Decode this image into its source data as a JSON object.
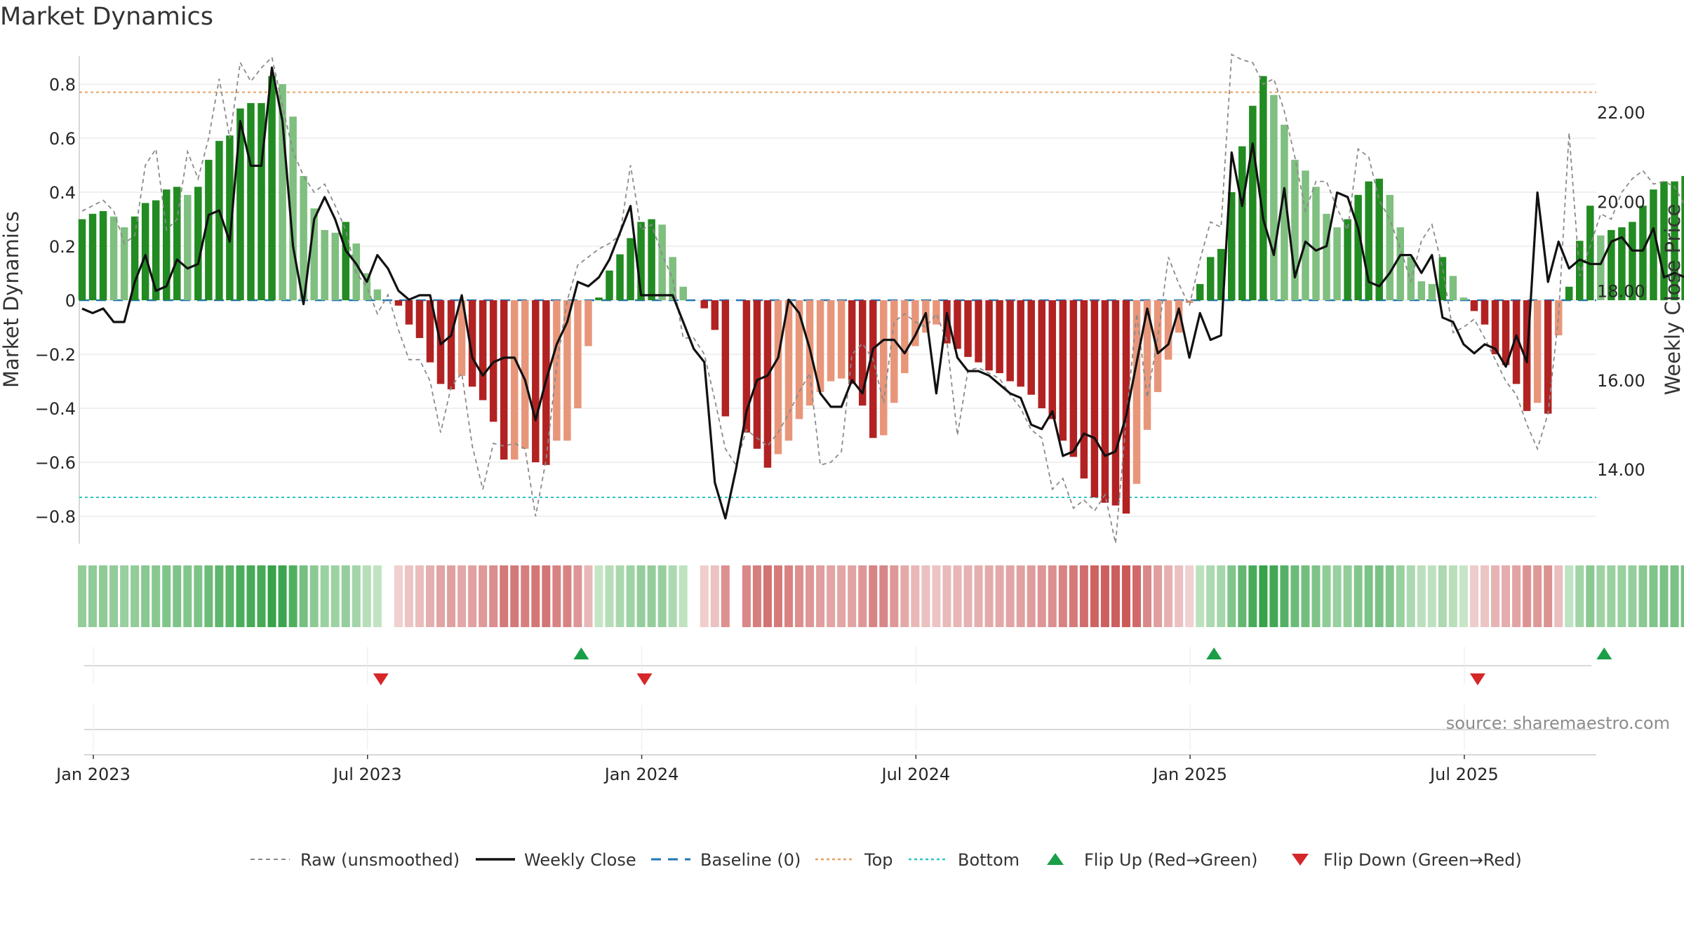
{
  "chart_data": {
    "type": "bar",
    "title": "Market Dynamics",
    "ylabel_left": "Market Dynamics",
    "ylabel_right": "Weekly Close Price",
    "ylim_left": [
      -0.9,
      0.9
    ],
    "ylim_right": [
      12.8,
      23.3
    ],
    "yticks_left": [
      "0.8",
      "0.6",
      "0.4",
      "0.2",
      "0",
      "−0.2",
      "−0.4",
      "−0.6",
      "−0.8"
    ],
    "yticks_right": [
      "22.00",
      "20.00",
      "18.00",
      "16.00",
      "14.00"
    ],
    "xticks": [
      "Jan 2023",
      "Jul 2023",
      "Jan 2024",
      "Jul 2024",
      "Jan 2025",
      "Jul 2025"
    ],
    "x_start": "2023-01-02",
    "x_end": "2025-10-20",
    "grid": true,
    "reference_lines": {
      "baseline": 0,
      "top": 0.77,
      "bottom": -0.73
    },
    "series": [
      {
        "name": "Market Dynamics (smoothed bars)",
        "values": [
          0.3,
          0.32,
          0.33,
          0.31,
          0.27,
          0.31,
          0.36,
          0.37,
          0.41,
          0.42,
          0.39,
          0.42,
          0.52,
          0.59,
          0.61,
          0.71,
          0.73,
          0.73,
          0.83,
          0.8,
          0.68,
          0.46,
          0.34,
          0.26,
          0.25,
          0.29,
          0.21,
          0.1,
          0.04,
          0,
          -0.02,
          -0.09,
          -0.14,
          -0.23,
          -0.31,
          -0.33,
          -0.28,
          -0.32,
          -0.37,
          -0.45,
          -0.59,
          -0.59,
          -0.55,
          -0.6,
          -0.61,
          -0.52,
          -0.52,
          -0.4,
          -0.17,
          0.01,
          0.11,
          0.17,
          0.23,
          0.29,
          0.3,
          0.28,
          0.16,
          0.05,
          0,
          -0.03,
          -0.11,
          -0.43,
          0,
          -0.49,
          -0.55,
          -0.62,
          -0.57,
          -0.52,
          -0.44,
          -0.39,
          -0.34,
          -0.3,
          -0.29,
          -0.31,
          -0.39,
          -0.51,
          -0.5,
          -0.38,
          -0.27,
          -0.17,
          -0.12,
          -0.09,
          -0.16,
          -0.18,
          -0.21,
          -0.23,
          -0.26,
          -0.27,
          -0.3,
          -0.32,
          -0.35,
          -0.4,
          -0.44,
          -0.52,
          -0.58,
          -0.66,
          -0.73,
          -0.75,
          -0.76,
          -0.79,
          -0.68,
          -0.48,
          -0.34,
          -0.22,
          -0.12,
          -0.01,
          0.06,
          0.16,
          0.19,
          0.4,
          0.57,
          0.72,
          0.83,
          0.76,
          0.65,
          0.52,
          0.48,
          0.42,
          0.32,
          0.27,
          0.3,
          0.39,
          0.44,
          0.45,
          0.39,
          0.27,
          0.16,
          0.07,
          0.06,
          0.16,
          0.09,
          0.01,
          -0.04,
          -0.09,
          -0.2,
          -0.24,
          -0.31,
          -0.41,
          -0.38,
          -0.42,
          -0.13,
          0.05,
          0.22,
          0.35,
          0.24,
          0.26,
          0.27,
          0.29,
          0.35,
          0.41,
          0.44,
          0.44,
          0.46,
          0.41,
          0.35,
          0.28,
          0.14,
          0.03
        ]
      },
      {
        "name": "Raw (unsmoothed)",
        "values": [
          0.33,
          0.35,
          0.37,
          0.33,
          0.21,
          0.24,
          0.5,
          0.56,
          0.26,
          0.3,
          0.55,
          0.45,
          0.6,
          0.82,
          0.6,
          0.88,
          0.81,
          0.86,
          0.9,
          0.72,
          0.55,
          0.46,
          0.4,
          0.43,
          0.35,
          0.26,
          0.1,
          0.05,
          -0.05,
          0.02,
          -0.11,
          -0.22,
          -0.22,
          -0.3,
          -0.49,
          -0.32,
          -0.27,
          -0.54,
          -0.7,
          -0.53,
          -0.54,
          -0.53,
          -0.55,
          -0.8,
          -0.59,
          -0.24,
          0,
          0.13,
          0.16,
          0.19,
          0.21,
          0.24,
          0.5,
          0.26,
          0.28,
          0.17,
          0.08,
          -0.14,
          -0.14,
          -0.2,
          -0.37,
          -0.55,
          -0.61,
          -0.48,
          -0.51,
          -0.54,
          -0.49,
          -0.42,
          -0.34,
          -0.27,
          -0.61,
          -0.6,
          -0.56,
          -0.2,
          -0.16,
          -0.22,
          -0.38,
          -0.08,
          -0.05,
          -0.08,
          -0.1,
          -0.05,
          -0.15,
          -0.5,
          -0.26,
          -0.25,
          -0.27,
          -0.29,
          -0.35,
          -0.4,
          -0.48,
          -0.51,
          -0.7,
          -0.66,
          -0.77,
          -0.74,
          -0.78,
          -0.72,
          -0.9,
          -0.44,
          -0.05,
          -0.36,
          -0.14,
          0.16,
          0.06,
          -0.02,
          0.15,
          0.29,
          0.27,
          0.91,
          0.89,
          0.88,
          0.8,
          0.82,
          0.7,
          0.53,
          0.33,
          0.44,
          0.44,
          0.34,
          0.26,
          0.56,
          0.53,
          0.37,
          0.3,
          0.19,
          0.07,
          0.22,
          0.28,
          0.12,
          -0.12,
          -0.1,
          -0.07,
          -0.14,
          -0.22,
          -0.3,
          -0.35,
          -0.46,
          -0.55,
          -0.42,
          -0.06,
          0.62,
          0.09,
          0.2,
          0.32,
          0.3,
          0.4,
          0.45,
          0.48,
          0.43,
          0.44,
          0.42,
          0.35,
          0.26,
          0.2,
          -0.13,
          -0.11
        ]
      },
      {
        "name": "Weekly Close",
        "values": [
          17.6,
          17.5,
          17.6,
          17.3,
          17.3,
          18.2,
          18.8,
          18,
          18.1,
          18.7,
          18.5,
          18.6,
          19.7,
          19.8,
          19.1,
          21.8,
          20.8,
          20.8,
          23,
          21.8,
          19,
          17.7,
          19.6,
          20.1,
          19.6,
          18.9,
          18.6,
          18.2,
          18.8,
          18.5,
          18,
          17.8,
          17.9,
          17.9,
          16.8,
          17,
          17.9,
          16.5,
          16.1,
          16.4,
          16.5,
          16.5,
          16,
          15.1,
          16,
          16.8,
          17.3,
          18.2,
          18.1,
          18.3,
          18.7,
          19.3,
          19.9,
          17.9,
          17.9,
          17.9,
          17.9,
          17.3,
          16.7,
          16.4,
          13.7,
          12.9,
          14,
          15.3,
          16,
          16.1,
          16.5,
          17.8,
          17.5,
          16.7,
          15.7,
          15.4,
          15.4,
          16,
          15.7,
          16.7,
          16.9,
          16.9,
          16.6,
          17,
          17.5,
          15.7,
          17.5,
          16.5,
          16.2,
          16.2,
          16.1,
          15.9,
          15.7,
          15.6,
          15,
          14.9,
          15.3,
          14.3,
          14.4,
          14.8,
          14.7,
          14.3,
          14.4,
          15.2,
          16.4,
          17.6,
          16.6,
          16.8,
          17.6,
          16.5,
          17.5,
          16.9,
          17,
          21.1,
          19.9,
          21.3,
          19.6,
          18.8,
          20.3,
          18.3,
          19.1,
          18.9,
          19,
          20.2,
          20.1,
          19.4,
          18.2,
          18.1,
          18.4,
          18.8,
          18.8,
          18.4,
          18.8,
          17.4,
          17.3,
          16.8,
          16.6,
          16.8,
          16.7,
          16.3,
          17,
          16.4,
          20.2,
          18.2,
          19.1,
          18.5,
          18.7,
          18.6,
          18.6,
          19.1,
          19.2,
          18.9,
          18.9,
          19.4,
          18.3,
          18.4,
          18.3,
          18.1,
          17.7
        ]
      }
    ],
    "signal_strip": {
      "label": "regime heat strip"
    },
    "flip_up_weeks": [
      46,
      106,
      143
    ],
    "flip_down_weeks": [
      27,
      52,
      131
    ],
    "legend": {
      "position": "bottom-center",
      "items": [
        {
          "label": "Raw (unsmoothed)",
          "symbol": "dashed-gray"
        },
        {
          "label": "Weekly Close",
          "symbol": "solid-black"
        },
        {
          "label": "Baseline (0)",
          "symbol": "dashed-blue"
        },
        {
          "label": "Top",
          "symbol": "dotted-orange"
        },
        {
          "label": "Bottom",
          "symbol": "dotted-cyan"
        },
        {
          "label": "Flip Up (Red→Green)",
          "symbol": "triangle-up-green"
        },
        {
          "label": "Flip Down (Green→Red)",
          "symbol": "triangle-down-red"
        }
      ]
    },
    "source": "source: sharemaestro.com",
    "colors": {
      "bar_green_dark": "#228b22",
      "bar_green_light": "#7fbf7f",
      "bar_red_dark": "#b22222",
      "bar_red_light": "#e8967a",
      "raw_line": "#8a8a8a",
      "close_line": "#111111",
      "baseline": "#1f77b4",
      "top": "#e8a060",
      "bottom": "#2ec4c4",
      "flip_up": "#1a9e48",
      "flip_down": "#d62728"
    }
  }
}
